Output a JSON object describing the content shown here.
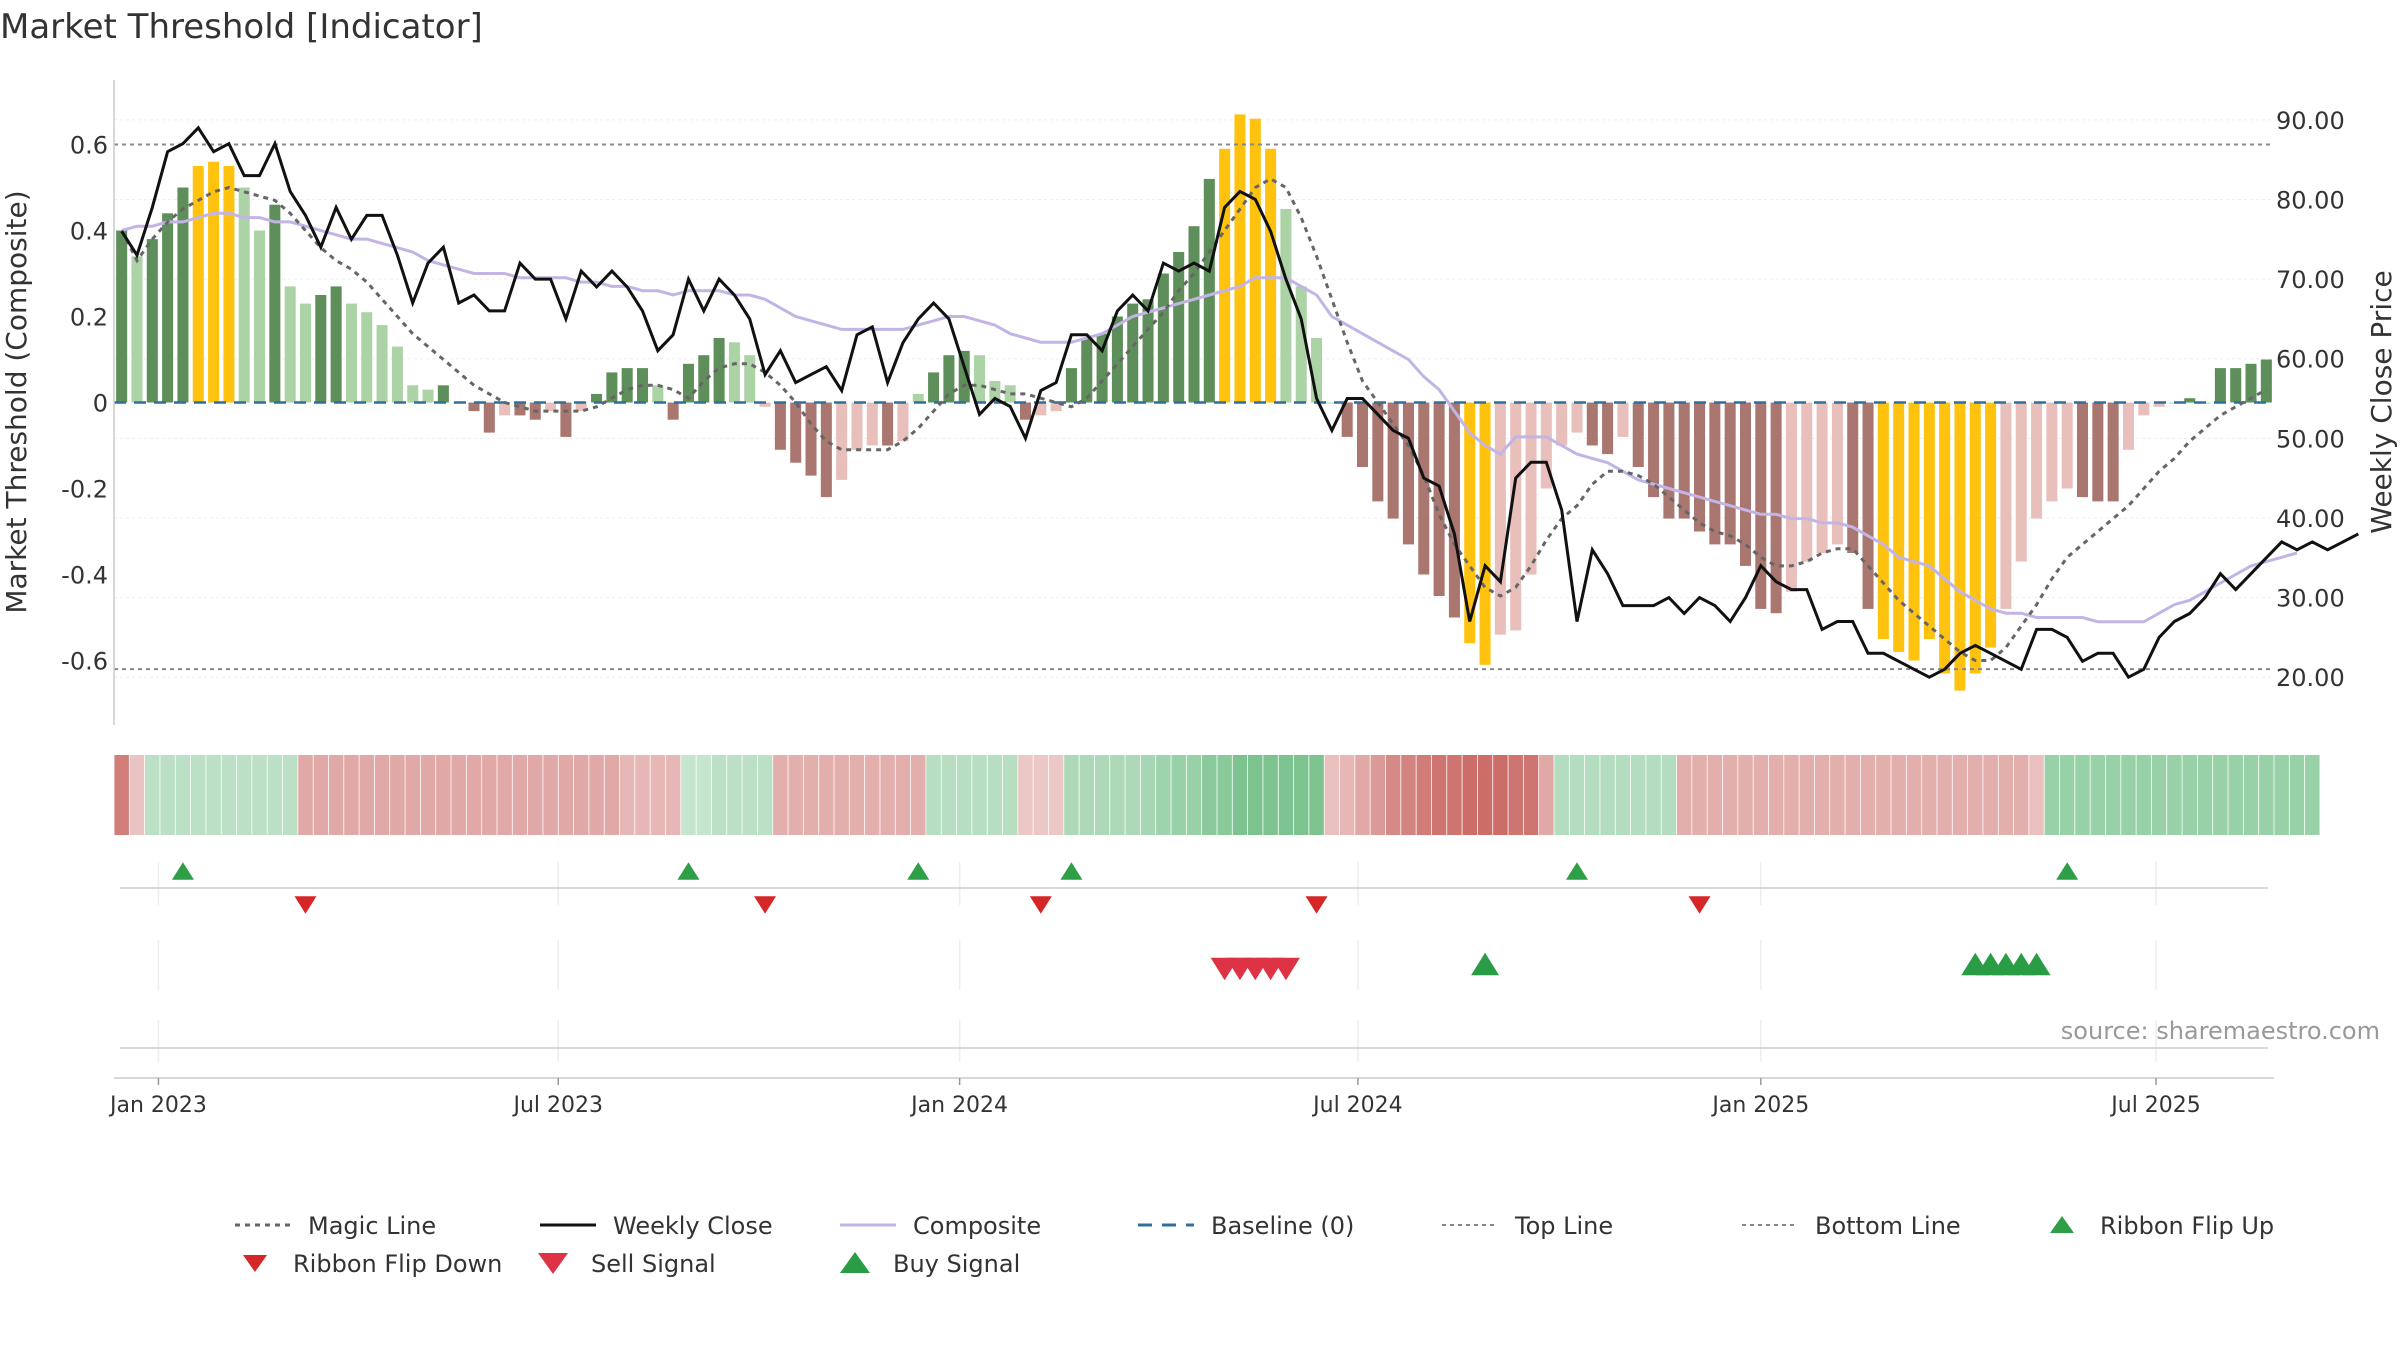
{
  "title": "Market Threshold [Indicator]",
  "source": "source: sharemaestro.com",
  "chart_data": {
    "type": "bar",
    "title": "Market Threshold [Indicator]",
    "ylabel": "Market Threshold (Composite)",
    "y2label": "Weekly Close Price",
    "ylim": [
      -0.75,
      0.75
    ],
    "y2lim": [
      14,
      95
    ],
    "yticks": [
      "0.6",
      "0.4",
      "0.2",
      "0",
      "-0.2",
      "-0.4",
      "-0.6"
    ],
    "yticks_values": [
      0.6,
      0.4,
      0.2,
      0,
      -0.2,
      -0.4,
      -0.6
    ],
    "y2ticks": [
      "90.00",
      "80.00",
      "70.00",
      "60.00",
      "50.00",
      "40.00",
      "30.00",
      "20.00"
    ],
    "y2ticks_values": [
      90,
      80,
      70,
      60,
      50,
      40,
      30,
      20
    ],
    "xticks": [
      "Jan 2023",
      "Jul 2023",
      "Jan 2024",
      "Jul 2024",
      "Jan 2025",
      "Jul 2025"
    ],
    "xticks_weeks": [
      2.9,
      29.0,
      55.2,
      81.2,
      107.5,
      133.3
    ],
    "x_start": "2022-12-19",
    "x_end": "2025-08-25",
    "top_line": 0.6,
    "bottom_line": -0.62,
    "composite_bars": [
      0.4,
      0.34,
      0.38,
      0.44,
      0.5,
      0.55,
      0.56,
      0.55,
      0.5,
      0.4,
      0.46,
      0.27,
      0.23,
      0.25,
      0.27,
      0.23,
      0.21,
      0.18,
      0.13,
      0.04,
      0.03,
      0.04,
      0,
      -0.02,
      -0.07,
      -0.03,
      -0.03,
      -0.04,
      -0.02,
      -0.08,
      -0.02,
      0.02,
      0.07,
      0.08,
      0.08,
      0.04,
      -0.04,
      0.09,
      0.11,
      0.15,
      0.14,
      0.11,
      -0.01,
      -0.11,
      -0.14,
      -0.17,
      -0.22,
      -0.18,
      -0.11,
      -0.1,
      -0.1,
      -0.09,
      0.02,
      0.07,
      0.11,
      0.12,
      0.11,
      0.05,
      0.04,
      -0.04,
      -0.03,
      -0.02,
      0.08,
      0.15,
      0.16,
      0.2,
      0.23,
      0.24,
      0.3,
      0.35,
      0.41,
      0.52,
      0.59,
      0.67,
      0.66,
      0.59,
      0.45,
      0.27,
      0.15,
      0,
      -0.08,
      -0.15,
      -0.23,
      -0.27,
      -0.33,
      -0.4,
      -0.45,
      -0.5,
      -0.56,
      -0.61,
      -0.54,
      -0.53,
      -0.4,
      -0.2,
      -0.1,
      -0.07,
      -0.1,
      -0.12,
      -0.08,
      -0.15,
      -0.22,
      -0.27,
      -0.27,
      -0.3,
      -0.33,
      -0.33,
      -0.38,
      -0.48,
      -0.49,
      -0.44,
      -0.37,
      -0.35,
      -0.33,
      -0.35,
      -0.48,
      -0.55,
      -0.58,
      -0.6,
      -0.55,
      -0.63,
      -0.67,
      -0.63,
      -0.57,
      -0.48,
      -0.37,
      -0.27,
      -0.23,
      -0.2,
      -0.22,
      -0.23,
      -0.23,
      -0.11,
      -0.03,
      -0.01,
      0,
      0.01,
      0,
      0.08,
      0.08,
      0.09,
      0.1
    ],
    "weekly_close": [
      76,
      73,
      79,
      86,
      87,
      89,
      86,
      87,
      83,
      83,
      87,
      81,
      78,
      74,
      79,
      75,
      78,
      78,
      73,
      67,
      72,
      74,
      67,
      68,
      66,
      66,
      72,
      70,
      70,
      65,
      71,
      69,
      71,
      69,
      66,
      61,
      63,
      70,
      66,
      70,
      68,
      65,
      58,
      61,
      57,
      58,
      59,
      56,
      63,
      64,
      57,
      62,
      65,
      67,
      65,
      59,
      53,
      55,
      54,
      50,
      56,
      57,
      63,
      63,
      61,
      66,
      68,
      66,
      72,
      71,
      72,
      71,
      79,
      81,
      80,
      76,
      70,
      65,
      55,
      51,
      55,
      55,
      53,
      51,
      50,
      45,
      44,
      38,
      27,
      34,
      32,
      45,
      47,
      47,
      41,
      27,
      36,
      33,
      29,
      29,
      29,
      30,
      28,
      30,
      29,
      27,
      30,
      34,
      32,
      31,
      31,
      26,
      27,
      27,
      23,
      23,
      22,
      21,
      20,
      21,
      23,
      24,
      23,
      22,
      21,
      26,
      26,
      25,
      22,
      23,
      23,
      20,
      21,
      25,
      27,
      28,
      30,
      33,
      31,
      33,
      35,
      37,
      36,
      37,
      36,
      37,
      38
    ],
    "composite_line": [
      0.4,
      0.41,
      0.41,
      0.42,
      0.42,
      0.43,
      0.44,
      0.44,
      0.43,
      0.43,
      0.42,
      0.42,
      0.41,
      0.4,
      0.39,
      0.38,
      0.38,
      0.37,
      0.36,
      0.35,
      0.33,
      0.32,
      0.31,
      0.3,
      0.3,
      0.3,
      0.29,
      0.29,
      0.29,
      0.29,
      0.28,
      0.28,
      0.27,
      0.27,
      0.26,
      0.26,
      0.25,
      0.26,
      0.26,
      0.26,
      0.25,
      0.25,
      0.24,
      0.22,
      0.2,
      0.19,
      0.18,
      0.17,
      0.17,
      0.17,
      0.17,
      0.17,
      0.18,
      0.19,
      0.2,
      0.2,
      0.19,
      0.18,
      0.16,
      0.15,
      0.14,
      0.14,
      0.14,
      0.15,
      0.16,
      0.18,
      0.2,
      0.21,
      0.22,
      0.23,
      0.24,
      0.25,
      0.26,
      0.27,
      0.29,
      0.29,
      0.29,
      0.27,
      0.25,
      0.2,
      0.18,
      0.16,
      0.14,
      0.12,
      0.1,
      0.06,
      0.03,
      -0.02,
      -0.07,
      -0.1,
      -0.12,
      -0.08,
      -0.08,
      -0.08,
      -0.1,
      -0.12,
      -0.13,
      -0.14,
      -0.16,
      -0.18,
      -0.19,
      -0.2,
      -0.21,
      -0.22,
      -0.23,
      -0.24,
      -0.25,
      -0.26,
      -0.26,
      -0.27,
      -0.27,
      -0.28,
      -0.28,
      -0.29,
      -0.31,
      -0.33,
      -0.36,
      -0.37,
      -0.38,
      -0.41,
      -0.44,
      -0.46,
      -0.48,
      -0.49,
      -0.49,
      -0.5,
      -0.5,
      -0.5,
      -0.5,
      -0.51,
      -0.51,
      -0.51,
      -0.51,
      -0.49,
      -0.47,
      -0.46,
      -0.44,
      -0.42,
      -0.4,
      -0.38,
      -0.37,
      -0.36,
      -0.35
    ],
    "magic_line": [
      0.4,
      0.33,
      0.38,
      0.42,
      0.45,
      0.47,
      0.49,
      0.5,
      0.49,
      0.48,
      0.47,
      0.44,
      0.4,
      0.36,
      0.33,
      0.31,
      0.28,
      0.24,
      0.2,
      0.16,
      0.13,
      0.1,
      0.07,
      0.04,
      0.02,
      0,
      -0.01,
      -0.02,
      -0.02,
      -0.02,
      -0.02,
      -0.01,
      0.01,
      0.03,
      0.04,
      0.04,
      0.03,
      0.01,
      0.05,
      0.08,
      0.09,
      0.09,
      0.07,
      0.04,
      0,
      -0.05,
      -0.09,
      -0.11,
      -0.11,
      -0.11,
      -0.11,
      -0.09,
      -0.06,
      -0.02,
      0.02,
      0.04,
      0.04,
      0.03,
      0.02,
      0.02,
      0.01,
      0,
      -0.01,
      0.01,
      0.05,
      0.09,
      0.13,
      0.17,
      0.21,
      0.26,
      0.3,
      0.35,
      0.4,
      0.45,
      0.5,
      0.52,
      0.5,
      0.43,
      0.34,
      0.24,
      0.14,
      0.05,
      0,
      -0.05,
      -0.1,
      -0.17,
      -0.26,
      -0.33,
      -0.38,
      -0.43,
      -0.45,
      -0.43,
      -0.38,
      -0.32,
      -0.27,
      -0.24,
      -0.19,
      -0.16,
      -0.16,
      -0.17,
      -0.19,
      -0.22,
      -0.25,
      -0.28,
      -0.3,
      -0.31,
      -0.33,
      -0.36,
      -0.38,
      -0.38,
      -0.37,
      -0.35,
      -0.34,
      -0.34,
      -0.38,
      -0.42,
      -0.46,
      -0.49,
      -0.52,
      -0.55,
      -0.58,
      -0.6,
      -0.6,
      -0.57,
      -0.52,
      -0.47,
      -0.41,
      -0.36,
      -0.33,
      -0.3,
      -0.27,
      -0.24,
      -0.2,
      -0.16,
      -0.13,
      -0.09,
      -0.06,
      -0.03,
      -0.01,
      0.01,
      0.03
    ],
    "ribbon": [
      -0.62,
      -0.17,
      0.25,
      0.25,
      0.25,
      0.25,
      0.25,
      0.25,
      0.25,
      0.25,
      0.25,
      0.25,
      -0.35,
      -0.35,
      -0.35,
      -0.35,
      -0.35,
      -0.35,
      -0.35,
      -0.35,
      -0.35,
      -0.35,
      -0.35,
      -0.35,
      -0.35,
      -0.35,
      -0.35,
      -0.35,
      -0.35,
      -0.35,
      -0.35,
      -0.35,
      -0.35,
      -0.25,
      -0.25,
      -0.25,
      -0.25,
      0.18,
      0.18,
      0.25,
      0.25,
      0.25,
      0.25,
      -0.3,
      -0.3,
      -0.3,
      -0.3,
      -0.3,
      -0.3,
      -0.3,
      -0.3,
      -0.3,
      -0.3,
      0.28,
      0.28,
      0.28,
      0.28,
      0.28,
      0.28,
      -0.15,
      -0.15,
      -0.15,
      0.35,
      0.35,
      0.35,
      0.35,
      0.35,
      0.4,
      0.45,
      0.5,
      0.5,
      0.6,
      0.6,
      0.7,
      0.7,
      0.7,
      0.7,
      0.7,
      0.7,
      -0.2,
      -0.25,
      -0.35,
      -0.45,
      -0.55,
      -0.6,
      -0.65,
      -0.7,
      -0.7,
      -0.75,
      -0.75,
      -0.75,
      -0.7,
      -0.7,
      -0.35,
      0.3,
      0.3,
      0.3,
      0.3,
      0.3,
      0.3,
      0.3,
      0.3,
      -0.3,
      -0.3,
      -0.3,
      -0.3,
      -0.3,
      -0.3,
      -0.3,
      -0.3,
      -0.3,
      -0.3,
      -0.3,
      -0.3,
      -0.3,
      -0.3,
      -0.3,
      -0.3,
      -0.3,
      -0.3,
      -0.3,
      -0.3,
      -0.3,
      -0.3,
      -0.3,
      -0.2,
      0.5,
      0.5,
      0.5,
      0.5,
      0.5,
      0.5,
      0.5,
      0.5,
      0.5,
      0.5,
      0.5,
      0.5,
      0.5,
      0.5,
      0.5,
      0.5,
      0.5,
      0.5
    ],
    "ribbon_flip_up": [
      4,
      37,
      52,
      62,
      95,
      127
    ],
    "ribbon_flip_down": [
      12,
      42,
      60,
      78,
      103
    ],
    "sell_signal": [
      72,
      73,
      74,
      75,
      76
    ],
    "buy_signal": [
      89,
      121,
      122,
      123,
      124,
      125
    ],
    "legend": [
      "Magic Line",
      "Weekly Close",
      "Composite",
      "Baseline (0)",
      "Top Line",
      "Bottom Line",
      "Ribbon Flip Up",
      "Ribbon Flip Down",
      "Sell Signal",
      "Buy Signal"
    ],
    "colors": {
      "bar_pos_strong": "#5e8f5b",
      "bar_pos_light": "#acd3a5",
      "bar_neg_strong": "#a97670",
      "bar_neg_light": "#e9bfbb",
      "bar_extreme": "#ffc20e",
      "weekly_close": "#111111",
      "composite": "#c3b4e6",
      "magic": "#666666",
      "baseline": "#2e6f9e",
      "threshold": "#888888",
      "flip_up": "#2e9e47",
      "flip_down": "#d62728",
      "sell": "#dd3344",
      "buy": "#2a9c46"
    }
  }
}
